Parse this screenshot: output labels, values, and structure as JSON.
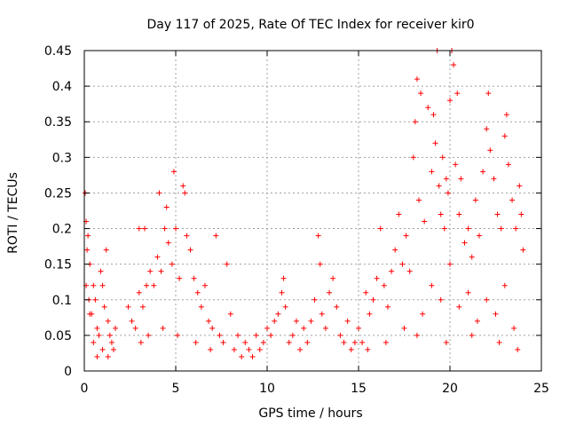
{
  "chart_data": {
    "type": "scatter",
    "title": "Day 117 of 2025, Rate Of TEC Index for receiver kir0",
    "xlabel": "GPS time / hours",
    "ylabel": "ROTI / TECUs",
    "xlim": [
      0,
      25
    ],
    "ylim": [
      0,
      0.45
    ],
    "x_ticks": [
      "0",
      "5",
      "10",
      "15",
      "20",
      "25"
    ],
    "y_ticks": [
      "0",
      "0.05",
      "0.1",
      "0.15",
      "0.2",
      "0.25",
      "0.3",
      "0.35",
      "0.4",
      "0.45"
    ],
    "grid": true,
    "marker": "+",
    "color": "#ff0000",
    "series": [
      {
        "points": [
          [
            0.05,
            0.25
          ],
          [
            0.1,
            0.21
          ],
          [
            0.2,
            0.19
          ],
          [
            0.15,
            0.17
          ],
          [
            0.3,
            0.15
          ],
          [
            0.1,
            0.12
          ],
          [
            0.25,
            0.1
          ],
          [
            0.4,
            0.08
          ],
          [
            0.5,
            0.12
          ],
          [
            0.6,
            0.1
          ],
          [
            0.7,
            0.06
          ],
          [
            0.8,
            0.05
          ],
          [
            0.9,
            0.14
          ],
          [
            1.0,
            0.12
          ],
          [
            1.1,
            0.09
          ],
          [
            1.2,
            0.17
          ],
          [
            1.3,
            0.07
          ],
          [
            1.4,
            0.05
          ],
          [
            1.5,
            0.04
          ],
          [
            1.6,
            0.03
          ],
          [
            1.7,
            0.06
          ],
          [
            0.3,
            0.08
          ],
          [
            0.5,
            0.04
          ],
          [
            0.7,
            0.02
          ],
          [
            1.0,
            0.03
          ],
          [
            1.3,
            0.02
          ],
          [
            2.4,
            0.09
          ],
          [
            2.6,
            0.07
          ],
          [
            2.8,
            0.06
          ],
          [
            3.0,
            0.11
          ],
          [
            3.2,
            0.09
          ],
          [
            3.4,
            0.12
          ],
          [
            3.6,
            0.14
          ],
          [
            3.8,
            0.12
          ],
          [
            4.0,
            0.16
          ],
          [
            4.2,
            0.14
          ],
          [
            4.4,
            0.2
          ],
          [
            4.5,
            0.23
          ],
          [
            4.6,
            0.18
          ],
          [
            4.8,
            0.15
          ],
          [
            4.9,
            0.28
          ],
          [
            5.0,
            0.2
          ],
          [
            5.2,
            0.13
          ],
          [
            5.4,
            0.26
          ],
          [
            5.5,
            0.25
          ],
          [
            5.6,
            0.19
          ],
          [
            5.8,
            0.17
          ],
          [
            6.0,
            0.13
          ],
          [
            6.2,
            0.11
          ],
          [
            6.4,
            0.09
          ],
          [
            6.6,
            0.12
          ],
          [
            6.8,
            0.07
          ],
          [
            7.0,
            0.06
          ],
          [
            3.0,
            0.2
          ],
          [
            3.3,
            0.2
          ],
          [
            4.1,
            0.25
          ],
          [
            3.1,
            0.04
          ],
          [
            3.5,
            0.05
          ],
          [
            4.3,
            0.06
          ],
          [
            5.1,
            0.05
          ],
          [
            6.1,
            0.04
          ],
          [
            6.9,
            0.03
          ],
          [
            7.2,
            0.19
          ],
          [
            7.4,
            0.05
          ],
          [
            7.6,
            0.04
          ],
          [
            7.8,
            0.15
          ],
          [
            8.0,
            0.08
          ],
          [
            8.2,
            0.03
          ],
          [
            8.4,
            0.05
          ],
          [
            8.6,
            0.02
          ],
          [
            8.8,
            0.04
          ],
          [
            9.0,
            0.03
          ],
          [
            9.2,
            0.02
          ],
          [
            9.4,
            0.05
          ],
          [
            9.6,
            0.03
          ],
          [
            9.8,
            0.04
          ],
          [
            10.0,
            0.06
          ],
          [
            10.2,
            0.05
          ],
          [
            10.4,
            0.07
          ],
          [
            10.6,
            0.08
          ],
          [
            10.8,
            0.11
          ],
          [
            10.9,
            0.13
          ],
          [
            11.0,
            0.09
          ],
          [
            11.2,
            0.04
          ],
          [
            11.4,
            0.05
          ],
          [
            11.6,
            0.07
          ],
          [
            11.8,
            0.03
          ],
          [
            12.0,
            0.06
          ],
          [
            12.2,
            0.04
          ],
          [
            12.4,
            0.07
          ],
          [
            12.6,
            0.1
          ],
          [
            12.8,
            0.19
          ],
          [
            12.9,
            0.15
          ],
          [
            13.0,
            0.08
          ],
          [
            13.2,
            0.06
          ],
          [
            13.4,
            0.11
          ],
          [
            13.6,
            0.13
          ],
          [
            13.8,
            0.09
          ],
          [
            14.0,
            0.05
          ],
          [
            14.2,
            0.04
          ],
          [
            14.4,
            0.07
          ],
          [
            14.6,
            0.03
          ],
          [
            14.8,
            0.04
          ],
          [
            15.0,
            0.06
          ],
          [
            15.2,
            0.04
          ],
          [
            15.4,
            0.11
          ],
          [
            15.6,
            0.08
          ],
          [
            15.8,
            0.1
          ],
          [
            16.0,
            0.13
          ],
          [
            16.2,
            0.2
          ],
          [
            16.4,
            0.12
          ],
          [
            16.6,
            0.09
          ],
          [
            16.8,
            0.14
          ],
          [
            17.0,
            0.17
          ],
          [
            17.2,
            0.22
          ],
          [
            17.4,
            0.15
          ],
          [
            17.6,
            0.19
          ],
          [
            17.8,
            0.14
          ],
          [
            18.0,
            0.3
          ],
          [
            18.1,
            0.35
          ],
          [
            18.2,
            0.41
          ],
          [
            18.3,
            0.24
          ],
          [
            18.4,
            0.39
          ],
          [
            18.6,
            0.21
          ],
          [
            18.8,
            0.37
          ],
          [
            19.0,
            0.28
          ],
          [
            19.1,
            0.36
          ],
          [
            19.2,
            0.32
          ],
          [
            19.3,
            0.45
          ],
          [
            19.4,
            0.26
          ],
          [
            19.5,
            0.22
          ],
          [
            19.6,
            0.3
          ],
          [
            19.7,
            0.2
          ],
          [
            19.8,
            0.27
          ],
          [
            19.9,
            0.25
          ],
          [
            20.0,
            0.38
          ],
          [
            20.1,
            0.45
          ],
          [
            20.2,
            0.43
          ],
          [
            20.3,
            0.29
          ],
          [
            20.4,
            0.39
          ],
          [
            20.5,
            0.22
          ],
          [
            20.6,
            0.27
          ],
          [
            20.8,
            0.18
          ],
          [
            21.0,
            0.2
          ],
          [
            21.2,
            0.16
          ],
          [
            21.4,
            0.24
          ],
          [
            21.6,
            0.19
          ],
          [
            21.8,
            0.28
          ],
          [
            22.0,
            0.34
          ],
          [
            22.1,
            0.39
          ],
          [
            22.2,
            0.31
          ],
          [
            22.4,
            0.27
          ],
          [
            22.6,
            0.22
          ],
          [
            22.8,
            0.2
          ],
          [
            23.0,
            0.33
          ],
          [
            23.1,
            0.36
          ],
          [
            23.2,
            0.29
          ],
          [
            23.4,
            0.24
          ],
          [
            23.6,
            0.2
          ],
          [
            23.8,
            0.26
          ],
          [
            23.9,
            0.22
          ],
          [
            24.0,
            0.17
          ],
          [
            18.5,
            0.08
          ],
          [
            19.0,
            0.12
          ],
          [
            19.5,
            0.1
          ],
          [
            20.0,
            0.15
          ],
          [
            20.5,
            0.09
          ],
          [
            21.0,
            0.11
          ],
          [
            21.5,
            0.07
          ],
          [
            22.0,
            0.1
          ],
          [
            22.5,
            0.08
          ],
          [
            23.0,
            0.12
          ],
          [
            23.5,
            0.06
          ],
          [
            18.2,
            0.05
          ],
          [
            19.8,
            0.04
          ],
          [
            21.2,
            0.05
          ],
          [
            22.7,
            0.04
          ],
          [
            23.7,
            0.03
          ],
          [
            17.5,
            0.06
          ],
          [
            16.5,
            0.04
          ],
          [
            15.5,
            0.03
          ]
        ]
      }
    ]
  }
}
